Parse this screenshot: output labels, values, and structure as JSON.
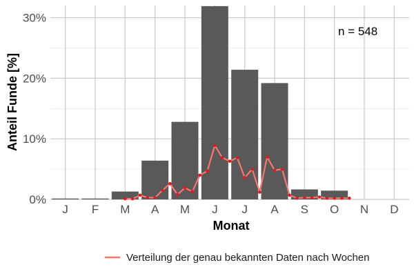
{
  "chart_data": {
    "type": "bar",
    "categories": [
      "J",
      "F",
      "M",
      "A",
      "M",
      "J",
      "J",
      "A",
      "S",
      "O",
      "N",
      "D"
    ],
    "values": [
      0.15,
      0.15,
      1.3,
      6.4,
      12.8,
      31.9,
      21.4,
      19.2,
      1.65,
      1.45,
      0,
      0
    ],
    "xlabel": "Monat",
    "ylabel": "Anteil Funde [%]",
    "ylim": [
      0,
      32
    ],
    "yticks": [
      0,
      10,
      20,
      30
    ],
    "ytick_labels": [
      "0%",
      "10%",
      "20%",
      "30%"
    ],
    "annotation": "n = 548",
    "grid": true,
    "bar_color": "#595959",
    "weekly_series": {
      "name": "Verteilung der genau bekannten Daten nach Wochen",
      "color": "#f8766d",
      "point_color": "#e31a1c",
      "x_months": [
        3.0,
        3.25,
        3.5,
        3.75,
        4.0,
        4.25,
        4.5,
        4.75,
        5.0,
        5.25,
        5.5,
        5.75,
        6.0,
        6.25,
        6.5,
        6.75,
        7.0,
        7.25,
        7.5,
        7.75,
        8.0,
        8.25,
        8.5,
        8.75,
        9.0,
        9.25,
        9.5,
        9.75,
        10.0,
        10.25,
        10.5
      ],
      "values": [
        0.1,
        0.1,
        0.7,
        0.3,
        0.3,
        1.5,
        2.6,
        0.8,
        1.9,
        1.3,
        4.0,
        4.7,
        8.9,
        6.9,
        6.3,
        6.9,
        3.6,
        5.0,
        1.2,
        7.0,
        4.8,
        5.0,
        0.7,
        0.2,
        0.3,
        0.3,
        0.4,
        0.2,
        0.2,
        0.2,
        0.2
      ]
    },
    "legend": {
      "placement": "bottom",
      "label": "Verteilung der genau bekannten Daten nach Wochen"
    }
  }
}
